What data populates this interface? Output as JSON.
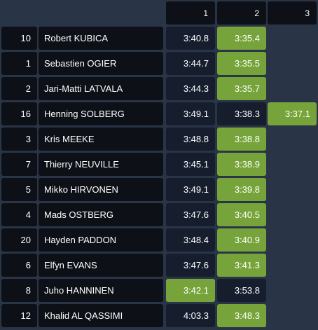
{
  "header": {
    "columns": [
      "1",
      "2",
      "3"
    ]
  },
  "rows": [
    {
      "position": "10",
      "driver": "Robert KUBICA",
      "times": [
        "3:40.8",
        "3:35.4"
      ],
      "best": 1
    },
    {
      "position": "1",
      "driver": "Sebastien OGIER",
      "times": [
        "3:44.7",
        "3:35.5"
      ],
      "best": 1
    },
    {
      "position": "2",
      "driver": "Jari-Matti LATVALA",
      "times": [
        "3:44.3",
        "3:35.7"
      ],
      "best": 1
    },
    {
      "position": "16",
      "driver": "Henning SOLBERG",
      "times": [
        "3:49.1",
        "3:38.3",
        "3:37.1"
      ],
      "best": 2
    },
    {
      "position": "3",
      "driver": "Kris MEEKE",
      "times": [
        "3:48.8",
        "3:38.8"
      ],
      "best": 1
    },
    {
      "position": "7",
      "driver": "Thierry NEUVILLE",
      "times": [
        "3:45.1",
        "3:38.9"
      ],
      "best": 1
    },
    {
      "position": "5",
      "driver": "Mikko HIRVONEN",
      "times": [
        "3:49.1",
        "3:39.8"
      ],
      "best": 1
    },
    {
      "position": "4",
      "driver": "Mads OSTBERG",
      "times": [
        "3:47.6",
        "3:40.5"
      ],
      "best": 1
    },
    {
      "position": "20",
      "driver": "Hayden PADDON",
      "times": [
        "3:48.4",
        "3:40.9"
      ],
      "best": 1
    },
    {
      "position": "6",
      "driver": "Elfyn EVANS",
      "times": [
        "3:47.6",
        "3:41.3"
      ],
      "best": 1
    },
    {
      "position": "8",
      "driver": "Juho HANNINEN",
      "times": [
        "3:42.1",
        "3:53.8"
      ],
      "best": 0
    },
    {
      "position": "12",
      "driver": "Khalid AL QASSIMI",
      "times": [
        "4:03.3",
        "3:48.3"
      ],
      "best": 1
    }
  ],
  "colors": {
    "background": "#2a3447",
    "cell": "#0d1117",
    "time_cell": "#161e2e",
    "best": "#76a33a"
  }
}
